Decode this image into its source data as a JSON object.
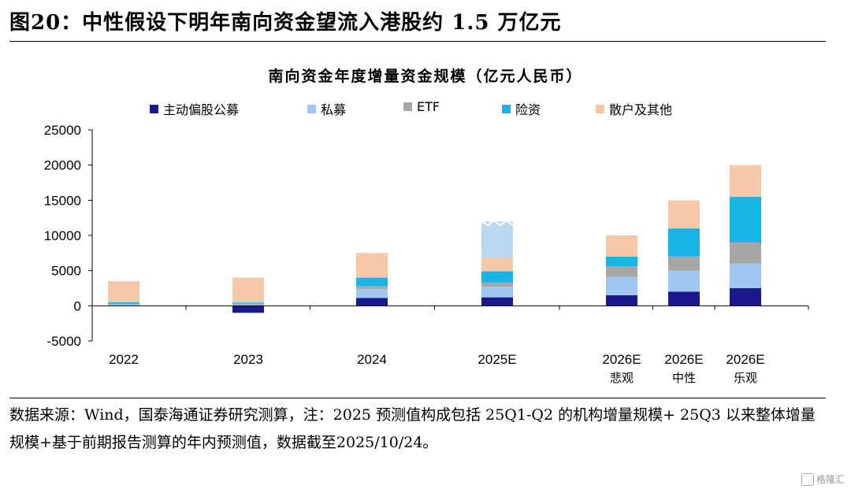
{
  "figure_title": "图20：中性假设下明年南向资金望流入港股约 1.5 万亿元",
  "source_note": "数据来源：Wind，国泰海通证券研究测算，注：2025 预测值构成包括 25Q1-Q2 的机构增量规模+ 25Q3 以来整体增量规模+基于前期报告测算的年内预测值，数据截至2025/10/24。",
  "watermark": "格隆汇",
  "chart_data": {
    "type": "bar",
    "stacked": true,
    "title": "南向资金年度增量资金规模（亿元人民币）",
    "xlabel": "",
    "ylabel": "",
    "ylim": [
      -5000,
      25000
    ],
    "yticks": [
      -5000,
      0,
      5000,
      10000,
      15000,
      20000,
      25000
    ],
    "grid": false,
    "legend_position": "top",
    "categories": [
      "2022",
      "2023",
      "2024",
      "2025E",
      "2026E",
      "2026E",
      "2026E"
    ],
    "category_sublabels": [
      "",
      "",
      "",
      "",
      "悲观",
      "中性",
      "乐观"
    ],
    "series": [
      {
        "name": "主动偏股公募",
        "color": "#1a1a8c",
        "values": [
          0,
          -1000,
          1100,
          1200,
          1500,
          2000,
          2500
        ]
      },
      {
        "name": "私募",
        "color": "#9ec8f2",
        "values": [
          200,
          200,
          1300,
          1500,
          2600,
          3000,
          3500
        ]
      },
      {
        "name": "ETF",
        "color": "#a6a6a6",
        "values": [
          100,
          200,
          400,
          600,
          1500,
          2000,
          3000
        ]
      },
      {
        "name": "险资",
        "color": "#18b4e8",
        "values": [
          200,
          100,
          1200,
          1600,
          1400,
          4000,
          6500
        ]
      },
      {
        "name": "散户及其他",
        "color": "#f5c9a8",
        "values": [
          3000,
          3500,
          3500,
          1900,
          3000,
          4000,
          4500
        ]
      }
    ],
    "extra_segments": [
      {
        "category_index": 3,
        "value": 5200,
        "color": "#bcd8ee"
      }
    ]
  }
}
